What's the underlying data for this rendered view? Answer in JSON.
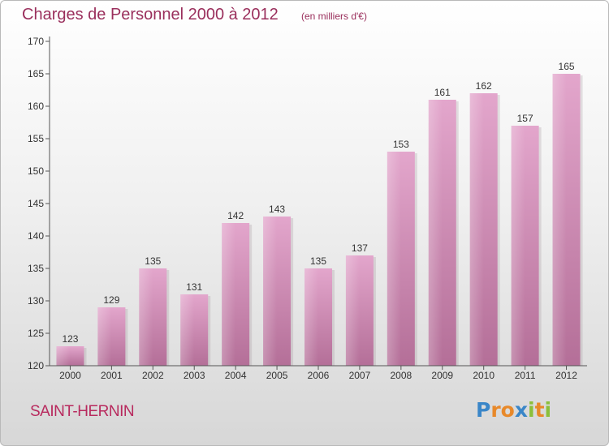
{
  "title": "Charges de Personnel 2000 à 2012",
  "subtitle": "(en milliers d'€)",
  "commune": "SAINT-HERNIN",
  "brand": {
    "letters": [
      {
        "char": "P",
        "color": "#3a86c8"
      },
      {
        "char": "r",
        "color": "#e8892a"
      },
      {
        "char": "o",
        "color": "#e8892a"
      },
      {
        "char": "x",
        "color": "#3a86c8"
      },
      {
        "char": "i",
        "color": "#8bbf3a"
      },
      {
        "char": "t",
        "color": "#e8892a"
      },
      {
        "char": "i",
        "color": "#8bbf3a"
      }
    ]
  },
  "colors": {
    "bar_top": "#e3a6cc",
    "bar_bottom": "#b46f98",
    "title": "#9a2f5c",
    "commune": "#b82a5e"
  },
  "chart_data": {
    "type": "bar",
    "title": "Charges de Personnel 2000 à 2012",
    "subtitle": "(en milliers d'€)",
    "categories": [
      "2000",
      "2001",
      "2002",
      "2003",
      "2004",
      "2005",
      "2006",
      "2007",
      "2008",
      "2009",
      "2010",
      "2011",
      "2012"
    ],
    "values": [
      123,
      129,
      135,
      131,
      142,
      143,
      135,
      137,
      153,
      161,
      162,
      157,
      165
    ],
    "ylim": [
      120,
      170
    ],
    "yticks": [
      120,
      125,
      130,
      135,
      140,
      145,
      150,
      155,
      160,
      165,
      170
    ],
    "grid": false,
    "legend": "none"
  }
}
